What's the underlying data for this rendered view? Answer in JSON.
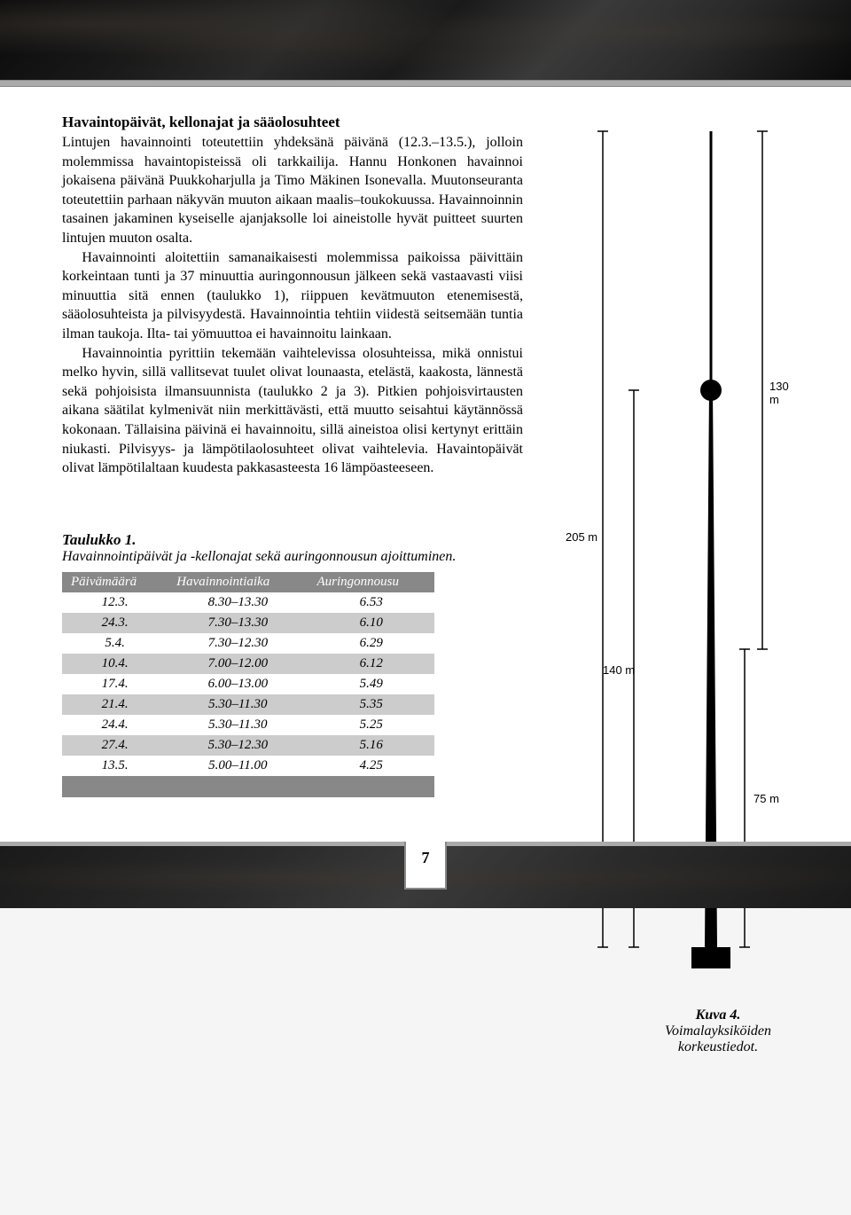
{
  "section_heading": "Havaintopäivät, kellonajat ja sääolosuhteet",
  "paragraphs": [
    "Lintujen havainnointi toteutettiin yhdeksänä päivänä (12.3.–13.5.), jolloin molemmissa havaintopisteissä oli tarkkailija. Hannu Honkonen havainnoi jokaisena päivänä Puukkoharjulla ja Timo Mäkinen Isonevalla. Muutonseuranta toteutettiin parhaan näkyvän muuton aikaan maalis–toukokuussa. Havainnoinnin tasainen jakaminen kyseiselle ajanjaksolle loi aineistolle hyvät puitteet suurten lintujen muuton osalta.",
    "Havainnointi aloitettiin samanaikaisesti molemmissa paikoissa päivittäin korkeintaan tunti ja 37 minuuttia auringonnousun jälkeen sekä vastaavasti viisi minuuttia sitä ennen (taulukko 1), riippuen kevätmuuton etenemisestä, sääolosuhteista ja pilvisyydestä. Havainnointia tehtiin viidestä seitsemään tuntia ilman taukoja. Ilta- tai yömuuttoa ei havainnoitu lainkaan.",
    "Havainnointia pyrittiin tekemään vaihtelevissa olosuhteissa, mikä onnistui melko hyvin, sillä vallitsevat tuulet olivat lounaasta, etelästä, kaakosta, lännestä sekä pohjoisista ilmansuunnista (taulukko 2 ja 3). Pitkien pohjoisvirtausten aikana säätilat kylmenivät niin merkittävästi, että muutto seisahtui käytännössä kokonaan. Tällaisina päivinä ei havainnoitu, sillä aineistoa olisi kertynyt erittäin niukasti. Pilvisyys- ja lämpötilaolosuhteet olivat vaihtelevia. Havaintopäivät olivat lämpötilaltaan kuudesta pakkasasteesta 16 lämpöasteeseen."
  ],
  "table": {
    "title": "Taulukko 1.",
    "caption": "Havainnointipäivät ja -kellonajat sekä auringonnousun ajoittuminen.",
    "columns": [
      "Päivämäärä",
      "Havainnointiaika",
      "Auringonnousu"
    ],
    "rows": [
      [
        "12.3.",
        "8.30–13.30",
        "6.53"
      ],
      [
        "24.3.",
        "7.30–13.30",
        "6.10"
      ],
      [
        "5.4.",
        "7.30–12.30",
        "6.29"
      ],
      [
        "10.4.",
        "7.00–12.00",
        "6.12"
      ],
      [
        "17.4.",
        "6.00–13.00",
        "5.49"
      ],
      [
        "21.4.",
        "5.30–11.30",
        "5.35"
      ],
      [
        "24.4.",
        "5.30–11.30",
        "5.25"
      ],
      [
        "27.4.",
        "5.30–12.30",
        "5.16"
      ],
      [
        "13.5.",
        "5.00–11.00",
        "4.25"
      ]
    ],
    "header_bg": "#888888",
    "header_fg": "#ffffff",
    "row_even_bg": "#cccccc",
    "row_odd_bg": "#ffffff"
  },
  "figure": {
    "title": "Kuva 4.",
    "caption": "Voimalayksiköiden korkeustiedot.",
    "labels": {
      "h205": "205 m",
      "h140": "140 m",
      "h130": "130 m",
      "h75": "75 m"
    },
    "colors": {
      "stroke": "#000000",
      "fill": "#000000"
    },
    "geometry": {
      "total_height_m": 205,
      "tower_height_m": 140,
      "hub_height_m": 140,
      "rotor_diameter_m": 130,
      "tip_height_m": 205,
      "low_tip_m": 75
    }
  },
  "page_number": "7"
}
